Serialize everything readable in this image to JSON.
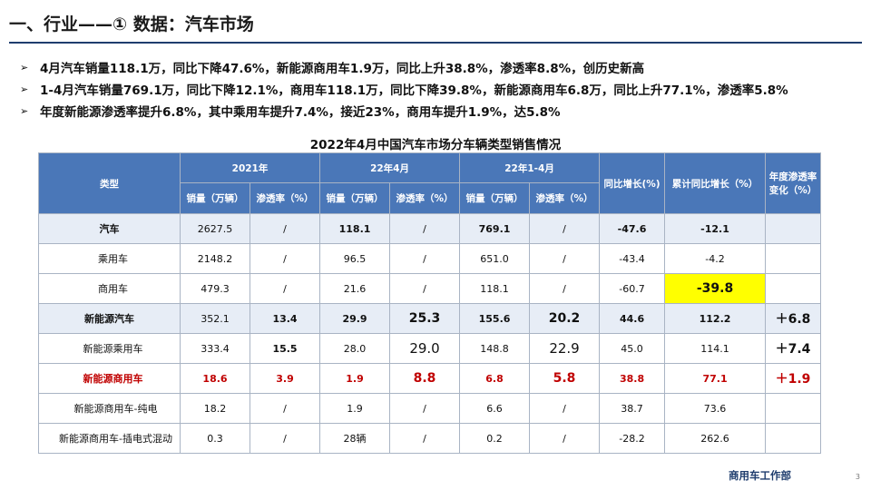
{
  "title": "一、行业——① 数据：汽车市场",
  "bullets": [
    "4月汽车销量118.1万，同比下降47.6%，新能源商用车1.9万，同比上升38.8%，渗透率8.8%，创历史新高",
    "1-4月汽车销量769.1万，同比下降12.1%，商用车118.1万，同比下降39.8%，新能源商用车6.8万，同比上升77.1%，渗透率5.8%",
    "年度新能源渗透率提升6.8%，其中乘用车提升7.4%，接近23%，商用车提升1.9%，达5.8%"
  ],
  "bullet_marker": "➢",
  "table": {
    "title": "2022年4月中国汽车市场分车辆类型销售情况",
    "header": {
      "type": "类型",
      "group_2021": "2021年",
      "group_apr": "22年4月",
      "group_ytd": "22年1-4月",
      "yoy": "同比增长(%)",
      "cum_yoy": "累计同比增长（%）",
      "pen_change": "年度渗透率变化（%）",
      "sales": "销量（万辆）",
      "penetration": "渗透率（%）"
    },
    "rows": [
      {
        "name": "汽车",
        "s2021": "2627.5",
        "p2021": "/",
        "sApr": "118.1",
        "pApr": "/",
        "sYtd": "769.1",
        "pYtd": "/",
        "yoy": "-47.6",
        "cum": "-12.1",
        "delta": ""
      },
      {
        "name": "乘用车",
        "s2021": "2148.2",
        "p2021": "/",
        "sApr": "96.5",
        "pApr": "/",
        "sYtd": "651.0",
        "pYtd": "/",
        "yoy": "-43.4",
        "cum": "-4.2",
        "delta": ""
      },
      {
        "name": "商用车",
        "s2021": "479.3",
        "p2021": "/",
        "sApr": "21.6",
        "pApr": "/",
        "sYtd": "118.1",
        "pYtd": "/",
        "yoy": "-60.7",
        "cum": "-39.8",
        "delta": ""
      },
      {
        "name": "新能源汽车",
        "s2021": "352.1",
        "p2021": "13.4",
        "sApr": "29.9",
        "pApr": "25.3",
        "sYtd": "155.6",
        "pYtd": "20.2",
        "yoy": "44.6",
        "cum": "112.2",
        "delta": "＋6.8"
      },
      {
        "name": "新能源乘用车",
        "s2021": "333.4",
        "p2021": "15.5",
        "sApr": "28.0",
        "pApr": "29.0",
        "sYtd": "148.8",
        "pYtd": "22.9",
        "yoy": "45.0",
        "cum": "114.1",
        "delta": "＋7.4"
      },
      {
        "name": "新能源商用车",
        "s2021": "18.6",
        "p2021": "3.9",
        "sApr": "1.9",
        "pApr": "8.8",
        "sYtd": "6.8",
        "pYtd": "5.8",
        "yoy": "38.8",
        "cum": "77.1",
        "delta": "＋1.9"
      },
      {
        "name": "新能源商用车-纯电",
        "s2021": "18.2",
        "p2021": "/",
        "sApr": "1.9",
        "pApr": "/",
        "sYtd": "6.6",
        "pYtd": "/",
        "yoy": "38.7",
        "cum": "73.6",
        "delta": ""
      },
      {
        "name": "新能源商用车-插电式混动",
        "s2021": "0.3",
        "p2021": "/",
        "sApr": "28辆",
        "pApr": "/",
        "sYtd": "0.2",
        "pYtd": "/",
        "yoy": "-28.2",
        "cum": "262.6",
        "delta": ""
      }
    ]
  },
  "footer": {
    "department": "商用车工作部",
    "page": "3"
  },
  "colors": {
    "header_blue": "#4a77b8",
    "band": "#e7edf6",
    "highlight_yellow": "#ffff00",
    "red": "#c00000"
  }
}
